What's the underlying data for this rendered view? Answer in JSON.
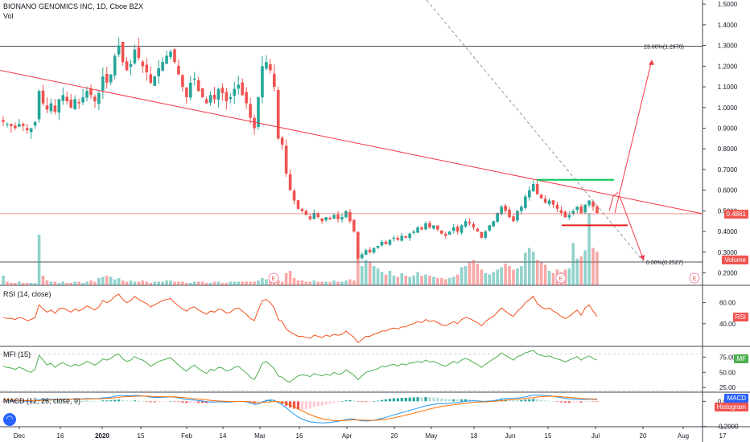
{
  "header": {
    "title": "BIONANO GENOMICS INC, 1D, Cboe BZX",
    "vol_label": "Vol"
  },
  "price_axis": {
    "ticks": [
      "1.5000",
      "1.4000",
      "1.3000",
      "1.2000",
      "1.1000",
      "1.0000",
      "0.9000",
      "0.8000",
      "0.7000",
      "0.6000",
      "0.5000",
      "0.4000",
      "0.3000",
      "0.2000"
    ],
    "tick_values": [
      1.5,
      1.4,
      1.3,
      1.2,
      1.1,
      1.0,
      0.9,
      0.8,
      0.7,
      0.6,
      0.5,
      0.4,
      0.3,
      0.2
    ],
    "range": [
      0.14,
      1.52
    ],
    "last_price": "0.4861",
    "last_price_value": 0.4861,
    "volume_tag": "Volume"
  },
  "time_axis": {
    "labels": [
      "Dec",
      "16",
      "2020",
      "15",
      "Feb",
      "14",
      "Mar",
      "16",
      "Apr",
      "20",
      "May",
      "18",
      "Jun",
      "15",
      "Jul",
      "20",
      "Aug",
      "17"
    ]
  },
  "fib": {
    "level_top_label": "23.60%(1.2970)",
    "level_top_value": 1.297,
    "level_bottom_label": "0.00%(0.2527)",
    "level_bottom_value": 0.2527
  },
  "events": [
    "E",
    "E",
    "E"
  ],
  "rsi": {
    "label": "RSI (14, close)",
    "ticks": [
      "60.00",
      "40.00"
    ],
    "tag": "RSI"
  },
  "mfi": {
    "label": "MFI (15)",
    "ticks": [
      "75.00",
      "50.00",
      "25.00"
    ],
    "tag": "MF"
  },
  "macd": {
    "label": "MACD (12, 26, close, 9)",
    "ticks": [
      "0.0000",
      "-0.2000"
    ],
    "tag_macd": "MACD",
    "tag_hist": "Histogram"
  },
  "colors": {
    "up": "#26a69a",
    "down": "#ef5350",
    "trend": "#f23645",
    "fib_diag": "#9598a1",
    "green_level": "#00c853",
    "red_level": "#e91e1e",
    "rsi_line": "#f4511e",
    "mfi_line": "#4caf50",
    "macd_line": "#2196f3",
    "signal_line": "#ff6d00"
  },
  "chart_data": {
    "type": "candlestick",
    "title": "BIONANO GENOMICS INC, 1D, Cboe BZX",
    "close_series": [
      0.93,
      0.92,
      0.91,
      0.9,
      0.92,
      0.91,
      0.89,
      0.9,
      0.93,
      1.08,
      1.02,
      0.99,
      1.02,
      0.98,
      1.04,
      1.06,
      1.03,
      1.0,
      1.04,
      1.02,
      1.05,
      1.08,
      1.06,
      1.03,
      1.07,
      1.15,
      1.12,
      1.16,
      1.25,
      1.3,
      1.22,
      1.18,
      1.21,
      1.28,
      1.24,
      1.2,
      1.17,
      1.12,
      1.15,
      1.19,
      1.22,
      1.25,
      1.27,
      1.22,
      1.16,
      1.1,
      1.05,
      1.12,
      1.14,
      1.08,
      1.05,
      1.02,
      1.06,
      1.04,
      1.09,
      1.07,
      1.03,
      1.05,
      1.09,
      1.11,
      1.06,
      1.02,
      0.95,
      0.9,
      1.05,
      1.2,
      1.22,
      1.18,
      1.1,
      0.85,
      0.82,
      0.68,
      0.6,
      0.55,
      0.51,
      0.5,
      0.48,
      0.46,
      0.49,
      0.47,
      0.45,
      0.47,
      0.46,
      0.48,
      0.46,
      0.47,
      0.5,
      0.45,
      0.4,
      0.27,
      0.29,
      0.31,
      0.3,
      0.32,
      0.33,
      0.35,
      0.34,
      0.36,
      0.37,
      0.36,
      0.38,
      0.37,
      0.39,
      0.4,
      0.42,
      0.41,
      0.44,
      0.42,
      0.43,
      0.41,
      0.39,
      0.38,
      0.4,
      0.42,
      0.4,
      0.43,
      0.45,
      0.44,
      0.42,
      0.4,
      0.37,
      0.4,
      0.43,
      0.45,
      0.49,
      0.52,
      0.5,
      0.47,
      0.45,
      0.5,
      0.52,
      0.57,
      0.6,
      0.63,
      0.58,
      0.56,
      0.54,
      0.55,
      0.53,
      0.51,
      0.49,
      0.47,
      0.48,
      0.5,
      0.52,
      0.49,
      0.53,
      0.55,
      0.52,
      0.49
    ],
    "volume_series": [
      0.08,
      0.03,
      0.02,
      0.02,
      0.03,
      0.02,
      0.02,
      0.02,
      0.02,
      0.42,
      0.08,
      0.04,
      0.03,
      0.03,
      0.02,
      0.03,
      0.02,
      0.02,
      0.03,
      0.03,
      0.02,
      0.03,
      0.04,
      0.03,
      0.06,
      0.07,
      0.08,
      0.07,
      0.05,
      0.06,
      0.04,
      0.03,
      0.04,
      0.03,
      0.03,
      0.04,
      0.03,
      0.02,
      0.03,
      0.03,
      0.03,
      0.04,
      0.04,
      0.03,
      0.03,
      0.03,
      0.02,
      0.02,
      0.03,
      0.03,
      0.03,
      0.02,
      0.02,
      0.03,
      0.03,
      0.02,
      0.02,
      0.03,
      0.03,
      0.03,
      0.03,
      0.03,
      0.03,
      0.03,
      0.04,
      0.06,
      0.05,
      0.04,
      0.05,
      0.04,
      0.03,
      0.1,
      0.12,
      0.06,
      0.04,
      0.04,
      0.03,
      0.03,
      0.04,
      0.03,
      0.03,
      0.03,
      0.03,
      0.04,
      0.03,
      0.03,
      0.04,
      0.05,
      0.04,
      0.26,
      0.16,
      0.21,
      0.19,
      0.16,
      0.14,
      0.11,
      0.09,
      0.12,
      0.08,
      0.07,
      0.1,
      0.08,
      0.07,
      0.08,
      0.11,
      0.08,
      0.09,
      0.08,
      0.07,
      0.06,
      0.06,
      0.05,
      0.06,
      0.07,
      0.09,
      0.15,
      0.16,
      0.19,
      0.21,
      0.18,
      0.13,
      0.1,
      0.09,
      0.11,
      0.13,
      0.15,
      0.18,
      0.16,
      0.13,
      0.14,
      0.16,
      0.27,
      0.31,
      0.28,
      0.21,
      0.19,
      0.17,
      0.12,
      0.1,
      0.13,
      0.11,
      0.13,
      0.14,
      0.35,
      0.22,
      0.24,
      0.29,
      0.6,
      0.31,
      0.28
    ],
    "rsi_series": [
      46,
      45,
      45,
      44,
      46,
      45,
      43,
      44,
      46,
      58,
      54,
      51,
      53,
      50,
      54,
      55,
      53,
      51,
      54,
      52,
      54,
      57,
      55,
      53,
      56,
      62,
      60,
      62,
      66,
      68,
      63,
      60,
      62,
      66,
      63,
      61,
      59,
      56,
      58,
      60,
      62,
      63,
      64,
      60,
      57,
      54,
      52,
      55,
      56,
      53,
      51,
      49,
      52,
      51,
      54,
      53,
      50,
      51,
      54,
      55,
      52,
      49,
      45,
      43,
      53,
      62,
      63,
      60,
      55,
      44,
      42,
      35,
      32,
      30,
      28,
      28,
      27,
      26,
      29,
      28,
      27,
      29,
      28,
      30,
      29,
      30,
      33,
      30,
      27,
      22,
      25,
      28,
      28,
      30,
      31,
      33,
      33,
      35,
      36,
      35,
      37,
      37,
      39,
      40,
      42,
      41,
      44,
      42,
      43,
      41,
      39,
      38,
      40,
      42,
      40,
      44,
      46,
      45,
      43,
      41,
      38,
      42,
      45,
      47,
      51,
      55,
      52,
      49,
      47,
      52,
      55,
      60,
      63,
      66,
      59,
      56,
      54,
      55,
      52,
      50,
      47,
      45,
      47,
      50,
      53,
      48,
      55,
      58,
      52,
      47
    ],
    "mfi_series": [
      60,
      58,
      57,
      55,
      58,
      56,
      52,
      50,
      55,
      78,
      70,
      62,
      65,
      58,
      63,
      66,
      62,
      60,
      63,
      61,
      64,
      68,
      65,
      62,
      66,
      72,
      70,
      73,
      78,
      80,
      72,
      68,
      70,
      76,
      72,
      70,
      66,
      60,
      64,
      68,
      70,
      72,
      74,
      68,
      62,
      56,
      52,
      58,
      62,
      56,
      52,
      48,
      55,
      53,
      58,
      57,
      52,
      54,
      58,
      60,
      54,
      49,
      42,
      38,
      50,
      65,
      68,
      62,
      56,
      44,
      42,
      36,
      34,
      40,
      44,
      46,
      45,
      43,
      48,
      46,
      44,
      47,
      45,
      50,
      47,
      48,
      54,
      50,
      45,
      38,
      44,
      50,
      52,
      54,
      56,
      60,
      59,
      62,
      63,
      60,
      64,
      62,
      65,
      66,
      68,
      66,
      70,
      67,
      68,
      65,
      62,
      60,
      64,
      68,
      65,
      70,
      73,
      70,
      66,
      63,
      58,
      63,
      68,
      72,
      76,
      82,
      78,
      74,
      70,
      76,
      78,
      82,
      84,
      86,
      80,
      78,
      76,
      77,
      74,
      72,
      70,
      67,
      70,
      73,
      76,
      70,
      74,
      77,
      73,
      70
    ],
    "macd_series": [
      0.01,
      0.008,
      0.006,
      0.004,
      0.004,
      0.003,
      0.002,
      0.001,
      0.002,
      0.012,
      0.015,
      0.016,
      0.017,
      0.015,
      0.017,
      0.019,
      0.019,
      0.018,
      0.019,
      0.019,
      0.02,
      0.022,
      0.022,
      0.021,
      0.022,
      0.028,
      0.03,
      0.033,
      0.04,
      0.046,
      0.046,
      0.044,
      0.044,
      0.047,
      0.046,
      0.043,
      0.039,
      0.033,
      0.031,
      0.031,
      0.032,
      0.034,
      0.036,
      0.033,
      0.028,
      0.021,
      0.013,
      0.011,
      0.01,
      0.006,
      0.002,
      -0.003,
      -0.004,
      -0.006,
      -0.004,
      -0.004,
      -0.006,
      -0.006,
      -0.003,
      0.0,
      -0.001,
      -0.005,
      -0.014,
      -0.025,
      -0.022,
      -0.008,
      0.004,
      0.01,
      0.008,
      -0.01,
      -0.027,
      -0.052,
      -0.078,
      -0.103,
      -0.125,
      -0.141,
      -0.154,
      -0.164,
      -0.167,
      -0.17,
      -0.172,
      -0.171,
      -0.169,
      -0.164,
      -0.16,
      -0.154,
      -0.145,
      -0.141,
      -0.141,
      -0.151,
      -0.156,
      -0.157,
      -0.156,
      -0.151,
      -0.145,
      -0.136,
      -0.128,
      -0.118,
      -0.108,
      -0.1,
      -0.09,
      -0.082,
      -0.073,
      -0.064,
      -0.054,
      -0.046,
      -0.036,
      -0.03,
      -0.024,
      -0.02,
      -0.018,
      -0.018,
      -0.016,
      -0.012,
      -0.01,
      -0.005,
      0.0,
      0.003,
      0.004,
      0.003,
      0.0,
      0.0,
      0.002,
      0.005,
      0.011,
      0.019,
      0.023,
      0.024,
      0.023,
      0.026,
      0.029,
      0.035,
      0.042,
      0.049,
      0.05,
      0.049,
      0.046,
      0.044,
      0.04,
      0.035,
      0.029,
      0.023,
      0.019,
      0.017,
      0.017,
      0.014,
      0.015,
      0.017,
      0.016,
      0.013
    ],
    "signal_series": [
      0.012,
      0.011,
      0.01,
      0.009,
      0.008,
      0.007,
      0.006,
      0.005,
      0.004,
      0.006,
      0.008,
      0.009,
      0.011,
      0.012,
      0.013,
      0.014,
      0.015,
      0.016,
      0.016,
      0.017,
      0.017,
      0.018,
      0.019,
      0.019,
      0.02,
      0.021,
      0.023,
      0.025,
      0.028,
      0.032,
      0.035,
      0.037,
      0.038,
      0.04,
      0.041,
      0.042,
      0.041,
      0.04,
      0.038,
      0.037,
      0.036,
      0.036,
      0.036,
      0.035,
      0.033,
      0.031,
      0.027,
      0.024,
      0.021,
      0.018,
      0.015,
      0.011,
      0.008,
      0.005,
      0.003,
      0.001,
      0.0,
      -0.001,
      -0.002,
      -0.001,
      -0.001,
      -0.002,
      -0.004,
      -0.008,
      -0.011,
      -0.01,
      -0.007,
      -0.004,
      -0.001,
      -0.003,
      -0.008,
      -0.017,
      -0.029,
      -0.044,
      -0.06,
      -0.076,
      -0.092,
      -0.106,
      -0.119,
      -0.129,
      -0.138,
      -0.145,
      -0.15,
      -0.153,
      -0.154,
      -0.154,
      -0.152,
      -0.15,
      -0.148,
      -0.149,
      -0.15,
      -0.151,
      -0.152,
      -0.152,
      -0.15,
      -0.147,
      -0.143,
      -0.138,
      -0.132,
      -0.125,
      -0.118,
      -0.11,
      -0.103,
      -0.095,
      -0.087,
      -0.078,
      -0.07,
      -0.062,
      -0.054,
      -0.047,
      -0.041,
      -0.036,
      -0.032,
      -0.028,
      -0.024,
      -0.02,
      -0.016,
      -0.012,
      -0.009,
      -0.006,
      -0.005,
      -0.004,
      -0.002,
      -0.001,
      0.002,
      0.005,
      0.009,
      0.012,
      0.014,
      0.017,
      0.019,
      0.022,
      0.026,
      0.03,
      0.034,
      0.037,
      0.039,
      0.04,
      0.04,
      0.039,
      0.037,
      0.034,
      0.031,
      0.028,
      0.026,
      0.023,
      0.021,
      0.02,
      0.019,
      0.018
    ],
    "trendline": {
      "from": 1.18,
      "to": 0.4861
    },
    "fib_levels": [
      {
        "label": "23.60%(1.2970)",
        "value": 1.297
      },
      {
        "label": "0.00%(0.2527)",
        "value": 0.2527
      }
    ],
    "annotations": {
      "resistance": 0.65,
      "support": 0.43,
      "target_up": 1.23,
      "target_down": 0.26
    }
  }
}
